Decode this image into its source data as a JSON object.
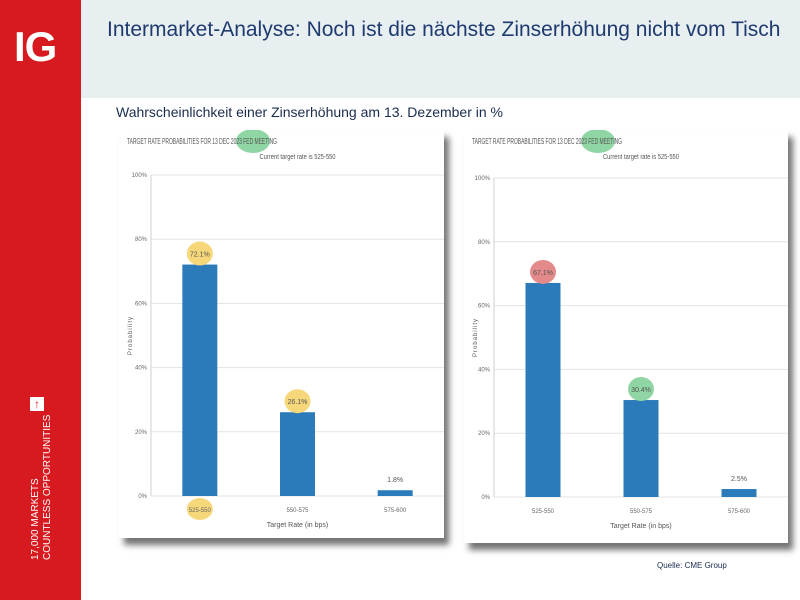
{
  "brand": {
    "logo": "IG",
    "tagline_line1": "17,000 MARKETS",
    "tagline_line2": "COUNTLESS OPPORTUNITIES"
  },
  "header": {
    "title": "Intermarket-Analyse:  Noch ist die nächste Zinserhöhung nicht vom Tisch"
  },
  "subtitle": "Wahrscheinlichkeit einer Zinserhöhung am 13. Dezember in %",
  "source": "Quelle: CME Group",
  "colors": {
    "bar": "#2b7bba",
    "highlight_yellow": "#f6d77a",
    "highlight_green": "#8fd6a4",
    "highlight_red": "#e58a8a",
    "brand_red": "#d71a1f"
  },
  "chart_data": [
    {
      "type": "bar",
      "title": "TARGET RATE PROBABILITIES FOR 13 DEC 2023 FED MEETING",
      "subtitle": "Current target rate is 525-550",
      "xlabel": "Target Rate (in bps)",
      "ylabel": "Probability",
      "categories": [
        "525-550",
        "550-575",
        "575-600"
      ],
      "values": [
        72.1,
        26.1,
        1.8
      ],
      "labels": [
        "72.1%",
        "26.1%",
        "1.8%"
      ],
      "yticks": [
        "0%",
        "20%",
        "40%",
        "60%",
        "80%",
        "100%"
      ],
      "ylim": [
        0,
        100
      ],
      "highlights": [
        {
          "target": "title-date",
          "color": "green"
        },
        {
          "target": "label-0",
          "color": "yellow"
        },
        {
          "target": "label-1",
          "color": "yellow"
        },
        {
          "target": "category-0",
          "color": "yellow"
        }
      ]
    },
    {
      "type": "bar",
      "title": "TARGET RATE PROBABILITIES FOR 13 DEC 2023 FED MEETING",
      "subtitle": "Current target rate is 525-550",
      "xlabel": "Target Rate (in bps)",
      "ylabel": "Probability",
      "categories": [
        "525-550",
        "550-575",
        "575-600"
      ],
      "values": [
        67.1,
        30.4,
        2.5
      ],
      "labels": [
        "67.1%",
        "30.4%",
        "2.5%"
      ],
      "yticks": [
        "0%",
        "20%",
        "40%",
        "60%",
        "80%",
        "100%"
      ],
      "ylim": [
        0,
        100
      ],
      "highlights": [
        {
          "target": "title-date",
          "color": "green"
        },
        {
          "target": "label-0",
          "color": "red"
        },
        {
          "target": "label-1",
          "color": "green"
        }
      ]
    }
  ]
}
